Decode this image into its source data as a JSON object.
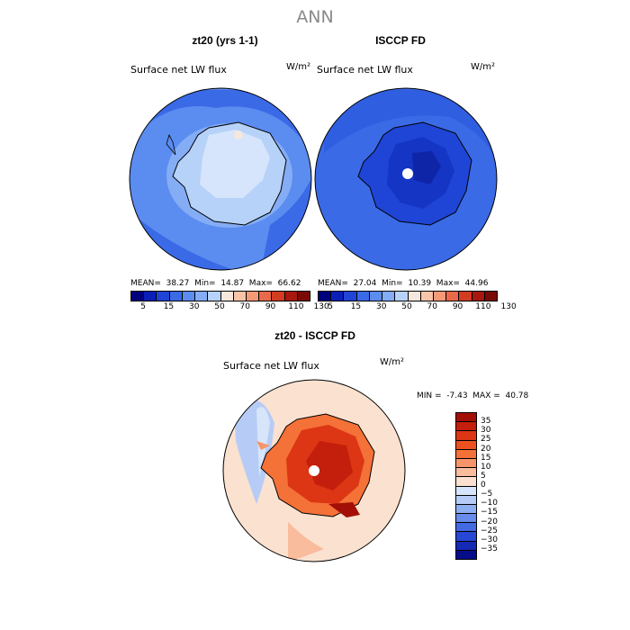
{
  "title": "ANN",
  "panels": [
    {
      "title": "zt20 (yrs 1-1)",
      "subtitle": "Surface net LW flux",
      "units": "W/m²",
      "stats": "MEAN=  38.27  Min=  14.87  Max=  66.62"
    },
    {
      "title": "ISCCP FD",
      "subtitle": "Surface net LW flux",
      "units": "W/m²",
      "stats": "MEAN=  27.04  Min=  10.39  Max=  44.96"
    }
  ],
  "top_colorbar": {
    "colors": [
      "#00007f",
      "#0a1fb8",
      "#1f45d6",
      "#3a6ae6",
      "#5b8cf0",
      "#84adf5",
      "#b7d2f8",
      "#f5e7dc",
      "#f8c5a8",
      "#f59a76",
      "#e9694a",
      "#d23d22",
      "#a8180c",
      "#7a0a05"
    ],
    "tick_labels": [
      "5",
      "15",
      "30",
      "50",
      "70",
      "90",
      "110",
      "130"
    ]
  },
  "difference": {
    "title": "zt20 - ISCCP FD",
    "subtitle": "Surface net LW flux",
    "units": "W/m²",
    "stats": "MIN =  -7.43  MAX =  40.78",
    "colorbar": {
      "colors": [
        "#a30f06",
        "#c41f0c",
        "#dc3614",
        "#ec5120",
        "#f47138",
        "#f7956a",
        "#f9bc9c",
        "#fbe1d0",
        "#d7e5fa",
        "#b6ccf6",
        "#8eaef2",
        "#688ceb",
        "#446ae2",
        "#2748d4",
        "#1429b4",
        "#060d8a"
      ],
      "tick_labels": [
        "35",
        "30",
        "25",
        "20",
        "15",
        "10",
        "5",
        "0",
        "−5",
        "−10",
        "−15",
        "−20",
        "−25",
        "−30",
        "−35"
      ]
    }
  }
}
